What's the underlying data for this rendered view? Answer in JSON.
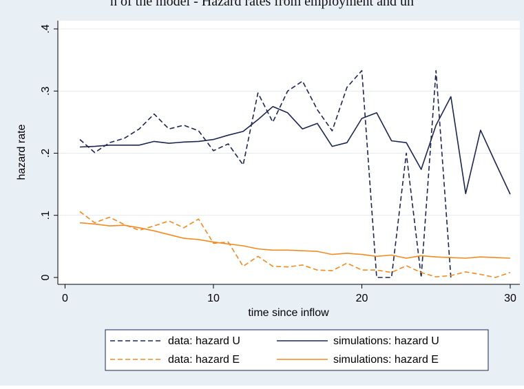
{
  "caption_partial": "n of the model - Hazard rates from employment and un",
  "colors": {
    "background": "#e8eff5",
    "plot_background": "#ffffff",
    "navy": "#1a2550",
    "orange": "#f28a1e",
    "grid": "#e4e9ef"
  },
  "chart_data": {
    "type": "line",
    "xlabel": "time since inflow",
    "ylabel": "hazard rate",
    "xlim": [
      0,
      30
    ],
    "ylim": [
      0,
      0.4
    ],
    "xticks": [
      0,
      10,
      20,
      30
    ],
    "yticks": [
      0,
      0.1,
      0.2,
      0.3,
      0.4
    ],
    "xtick_labels": [
      "0",
      "10",
      "20",
      "30"
    ],
    "ytick_labels": [
      "0",
      ".1",
      ".2",
      ".3",
      ".4"
    ],
    "grid": true,
    "legend_position": "bottom",
    "series": [
      {
        "name": "data: hazard U",
        "color": "#1a2550",
        "style": "dashed",
        "x": [
          1,
          2,
          3,
          4,
          5,
          6,
          7,
          8,
          9,
          10,
          11,
          12,
          13,
          14,
          15,
          16,
          17,
          18,
          19,
          20,
          21,
          22,
          23,
          24,
          25,
          26
        ],
        "y": [
          0.222,
          0.201,
          0.217,
          0.224,
          0.239,
          0.263,
          0.239,
          0.245,
          0.236,
          0.204,
          0.215,
          0.181,
          0.297,
          0.25,
          0.3,
          0.316,
          0.27,
          0.236,
          0.306,
          0.333,
          0.0,
          0.0,
          0.2,
          0.0,
          0.333,
          0.0
        ]
      },
      {
        "name": "simulations: hazard U",
        "color": "#1a2550",
        "style": "solid",
        "x": [
          1,
          2,
          3,
          4,
          5,
          6,
          7,
          8,
          9,
          10,
          11,
          12,
          13,
          14,
          15,
          16,
          17,
          18,
          19,
          20,
          21,
          22,
          23,
          24,
          25,
          26,
          27,
          28,
          29,
          30
        ],
        "y": [
          0.21,
          0.211,
          0.213,
          0.213,
          0.213,
          0.219,
          0.216,
          0.218,
          0.219,
          0.222,
          0.229,
          0.235,
          0.254,
          0.275,
          0.265,
          0.239,
          0.248,
          0.211,
          0.217,
          0.256,
          0.265,
          0.22,
          0.217,
          0.174,
          0.245,
          0.291,
          0.135,
          0.237,
          0.185,
          0.134
        ]
      },
      {
        "name": "data: hazard E",
        "color": "#f28a1e",
        "style": "dashed",
        "x": [
          1,
          2,
          3,
          4,
          5,
          6,
          7,
          8,
          9,
          10,
          11,
          12,
          13,
          14,
          15,
          16,
          17,
          18,
          19,
          20,
          21,
          22,
          23,
          24,
          25,
          26,
          27,
          28,
          29,
          30
        ],
        "y": [
          0.106,
          0.088,
          0.097,
          0.085,
          0.076,
          0.083,
          0.091,
          0.08,
          0.094,
          0.055,
          0.057,
          0.018,
          0.034,
          0.018,
          0.017,
          0.02,
          0.012,
          0.011,
          0.023,
          0.012,
          0.012,
          0.008,
          0.019,
          0.008,
          0.001,
          0.003,
          0.009,
          0.005,
          0.0,
          0.008
        ]
      },
      {
        "name": "simulations: hazard E",
        "color": "#f28a1e",
        "style": "solid",
        "x": [
          1,
          2,
          3,
          4,
          5,
          6,
          7,
          8,
          9,
          10,
          11,
          12,
          13,
          14,
          15,
          16,
          17,
          18,
          19,
          20,
          21,
          22,
          23,
          24,
          25,
          26,
          27,
          28,
          29,
          30
        ],
        "y": [
          0.088,
          0.086,
          0.083,
          0.084,
          0.08,
          0.075,
          0.069,
          0.063,
          0.061,
          0.057,
          0.054,
          0.051,
          0.046,
          0.044,
          0.044,
          0.043,
          0.042,
          0.037,
          0.039,
          0.037,
          0.034,
          0.036,
          0.031,
          0.035,
          0.033,
          0.032,
          0.031,
          0.033,
          0.032,
          0.031
        ]
      }
    ],
    "legend": [
      {
        "label": "data: hazard U",
        "color": "#1a2550",
        "style": "dashed"
      },
      {
        "label": "simulations: hazard U",
        "color": "#1a2550",
        "style": "solid"
      },
      {
        "label": "data: hazard E",
        "color": "#f28a1e",
        "style": "dashed"
      },
      {
        "label": "simulations: hazard E",
        "color": "#f28a1e",
        "style": "solid"
      }
    ]
  }
}
